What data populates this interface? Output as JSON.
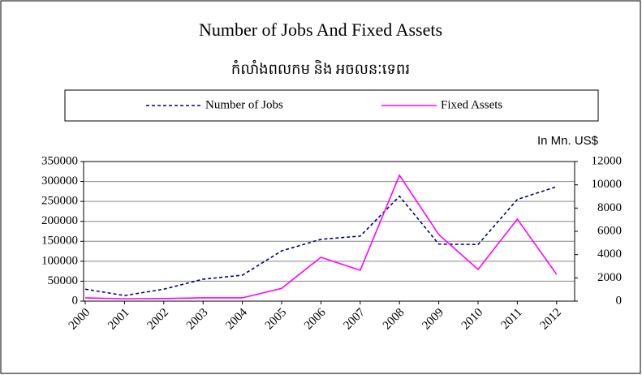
{
  "chart_data": {
    "type": "line",
    "title": "Number of Jobs And Fixed Assets",
    "subtitle": "កំលាំងពលកម និង អចលនៈទេពរ",
    "y2_label": "In Mn. US$",
    "categories": [
      "2000",
      "2001",
      "2002",
      "2003",
      "2004",
      "2005",
      "2006",
      "2007",
      "2008",
      "2009",
      "2010",
      "2011",
      "2012"
    ],
    "series": [
      {
        "name": "Number of Jobs",
        "color": "#000080",
        "dash": true,
        "axis": "y",
        "values": [
          30000,
          14000,
          30000,
          55000,
          65000,
          126000,
          155000,
          163000,
          263000,
          143000,
          142000,
          255000,
          287000
        ]
      },
      {
        "name": "Fixed Assets",
        "color": "#ff00ff",
        "dash": false,
        "axis": "y2",
        "values": [
          280,
          200,
          220,
          280,
          280,
          1100,
          3770,
          2650,
          10820,
          5720,
          2720,
          7050,
          2300
        ]
      }
    ],
    "ylim": [
      0,
      350000
    ],
    "yticks": [
      0,
      50000,
      100000,
      150000,
      200000,
      250000,
      300000,
      350000
    ],
    "y2lim": [
      0,
      12000
    ],
    "y2ticks": [
      0,
      2000,
      4000,
      6000,
      8000,
      10000,
      12000
    ],
    "grid": true,
    "legend": "top"
  }
}
